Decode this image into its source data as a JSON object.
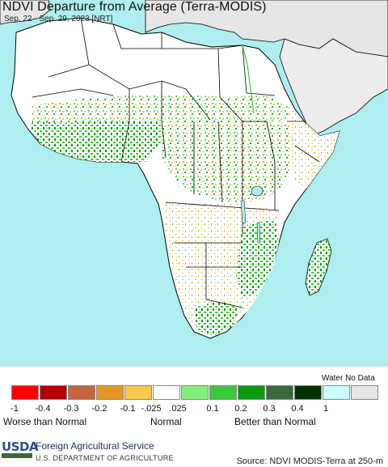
{
  "title": "NDVI Departure from Average (Terra-MODIS)",
  "subtitle": "Sep. 22 - Sep. 29, 2023 [NRT]",
  "legend": {
    "water_label": "Water No Data",
    "swatches": [
      {
        "color": "#ff0000",
        "name": "swatch-lt-minus-0.4"
      },
      {
        "color": "#b30000",
        "name": "swatch-minus-0.4"
      },
      {
        "color": "#c8643c",
        "name": "swatch-minus-0.3"
      },
      {
        "color": "#e69624",
        "name": "swatch-minus-0.2"
      },
      {
        "color": "#fbc84d",
        "name": "swatch-minus-0.1"
      },
      {
        "color": "#ffffff",
        "name": "swatch-normal"
      },
      {
        "color": "#82f078",
        "name": "swatch-0.1"
      },
      {
        "color": "#3cc83c",
        "name": "swatch-0.2"
      },
      {
        "color": "#0a9a0a",
        "name": "swatch-0.3"
      },
      {
        "color": "#37693a",
        "name": "swatch-0.4"
      },
      {
        "color": "#003200",
        "name": "swatch-1"
      },
      {
        "color": "#c8ffff",
        "name": "swatch-water"
      },
      {
        "color": "#e6e6e6",
        "name": "swatch-no-data"
      }
    ],
    "ticks": [
      "-1",
      "-0.4",
      "-0.3",
      "-0.2",
      "-0.1",
      "-.025",
      ".025",
      "0.1",
      "0.2",
      "0.3",
      "0.4",
      "1"
    ],
    "categories": {
      "worse": "Worse than Normal",
      "normal": "Normal",
      "better": "Better than Normal"
    }
  },
  "footer": {
    "logo_text": "USDA",
    "org_line1": "Foreign Agricultural Service",
    "org_line2": "U.S. DEPARTMENT OF AGRICULTURE",
    "source": "Source: NDVI MODIS-Terra at 250-m"
  },
  "colors": {
    "ocean": "#aeeef0",
    "land_desert": "#ffffff",
    "no_data_land": "#e6e6e6",
    "border": "#000000"
  }
}
